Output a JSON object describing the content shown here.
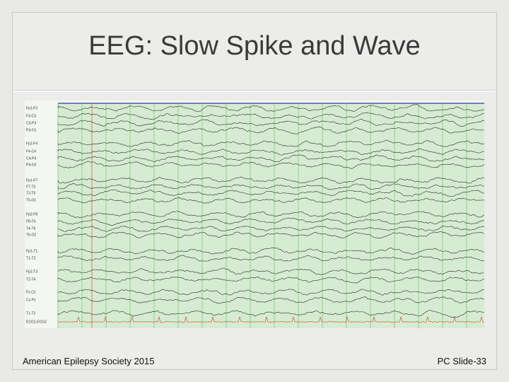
{
  "header": {
    "title": "EEG: Slow Spike and Wave"
  },
  "eeg": {
    "channels": [
      "Fp1-F3",
      "F3-C3",
      "C3-P3",
      "P3-O1",
      "Fp2-F4",
      "F4-C4",
      "C4-P4",
      "P4-O2",
      "Fp1-F7",
      "F7-T3",
      "T3-T5",
      "T5-O1",
      "Fp2-F8",
      "F8-T4",
      "T4-T6",
      "T6-O2",
      "Fp1-T1",
      "T1-T2",
      "Fp2-T3",
      "T2-T4",
      "Fz-Cz",
      "Cz-Pz",
      "T1-T2",
      "ECG1-ECG2"
    ]
  },
  "footer": {
    "left": "American Epilepsy Society 2015",
    "right": "PC Slide-33"
  }
}
